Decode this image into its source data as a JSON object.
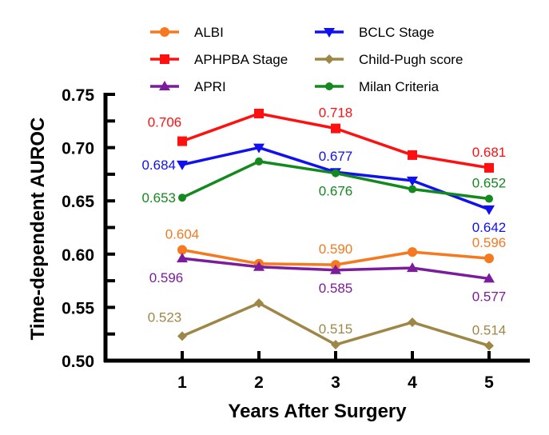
{
  "chart_data": {
    "type": "line",
    "title": "",
    "xlabel": "Years After Surgery",
    "ylabel": "Time-dependent AUROC",
    "x": [
      1,
      2,
      3,
      4,
      5
    ],
    "x_tick_labels": [
      "1",
      "2",
      "3",
      "4",
      "5"
    ],
    "xlim": [
      0,
      5.53
    ],
    "ylim": [
      0.5,
      0.75
    ],
    "y_ticks": [
      0.5,
      0.55,
      0.6,
      0.65,
      0.7,
      0.75
    ],
    "y_tick_labels": [
      "0.50",
      "0.55",
      "0.60",
      "0.65",
      "0.70",
      "0.75"
    ],
    "y_minor_step": 0.025,
    "grid": false,
    "legend_position": "top",
    "series": [
      {
        "name": "ALBI",
        "color": "#F7791F",
        "marker": "circle",
        "values": [
          0.604,
          0.591,
          0.59,
          0.602,
          0.596
        ],
        "labels": [
          {
            "index": 0,
            "text": "0.604",
            "position": "above"
          },
          {
            "index": 2,
            "text": "0.590",
            "position": "above"
          },
          {
            "index": 4,
            "text": "0.596",
            "position": "above"
          }
        ]
      },
      {
        "name": "APHPBA Stage",
        "color": "#FF1010",
        "marker": "square",
        "values": [
          0.706,
          0.732,
          0.718,
          0.693,
          0.681
        ],
        "labels": [
          {
            "index": 0,
            "text": "0.706",
            "position": "above-left"
          },
          {
            "index": 2,
            "text": "0.718",
            "position": "above"
          },
          {
            "index": 4,
            "text": "0.681",
            "position": "above"
          }
        ]
      },
      {
        "name": "APRI",
        "color": "#7B1C9C",
        "marker": "triangle-up",
        "values": [
          0.596,
          0.588,
          0.585,
          0.587,
          0.577
        ],
        "labels": [
          {
            "index": 0,
            "text": "0.596",
            "position": "below-left"
          },
          {
            "index": 2,
            "text": "0.585",
            "position": "below"
          },
          {
            "index": 4,
            "text": "0.577",
            "position": "below"
          }
        ]
      },
      {
        "name": "BCLC Stage",
        "color": "#1010F0",
        "marker": "triangle-down",
        "values": [
          0.684,
          0.7,
          0.677,
          0.669,
          0.642
        ],
        "labels": [
          {
            "index": 0,
            "text": "0.684",
            "position": "left"
          },
          {
            "index": 2,
            "text": "0.677",
            "position": "above"
          },
          {
            "index": 4,
            "text": "0.642",
            "position": "below"
          }
        ]
      },
      {
        "name": "Child-Pugh score",
        "color": "#9E8746",
        "marker": "diamond",
        "values": [
          0.523,
          0.554,
          0.515,
          0.536,
          0.514
        ],
        "labels": [
          {
            "index": 0,
            "text": "0.523",
            "position": "above-left"
          },
          {
            "index": 2,
            "text": "0.515",
            "position": "above"
          },
          {
            "index": 4,
            "text": "0.514",
            "position": "above"
          }
        ]
      },
      {
        "name": "Milan Criteria",
        "color": "#14891E",
        "marker": "circle-small",
        "values": [
          0.653,
          0.687,
          0.676,
          0.661,
          0.652
        ],
        "labels": [
          {
            "index": 0,
            "text": "0.653",
            "position": "left"
          },
          {
            "index": 2,
            "text": "0.676",
            "position": "below"
          },
          {
            "index": 4,
            "text": "0.652",
            "position": "above"
          }
        ]
      }
    ],
    "legend_order": [
      [
        "ALBI",
        "BCLC Stage"
      ],
      [
        "APHPBA Stage",
        "Child-Pugh score"
      ],
      [
        "APRI",
        "Milan Criteria"
      ]
    ]
  }
}
